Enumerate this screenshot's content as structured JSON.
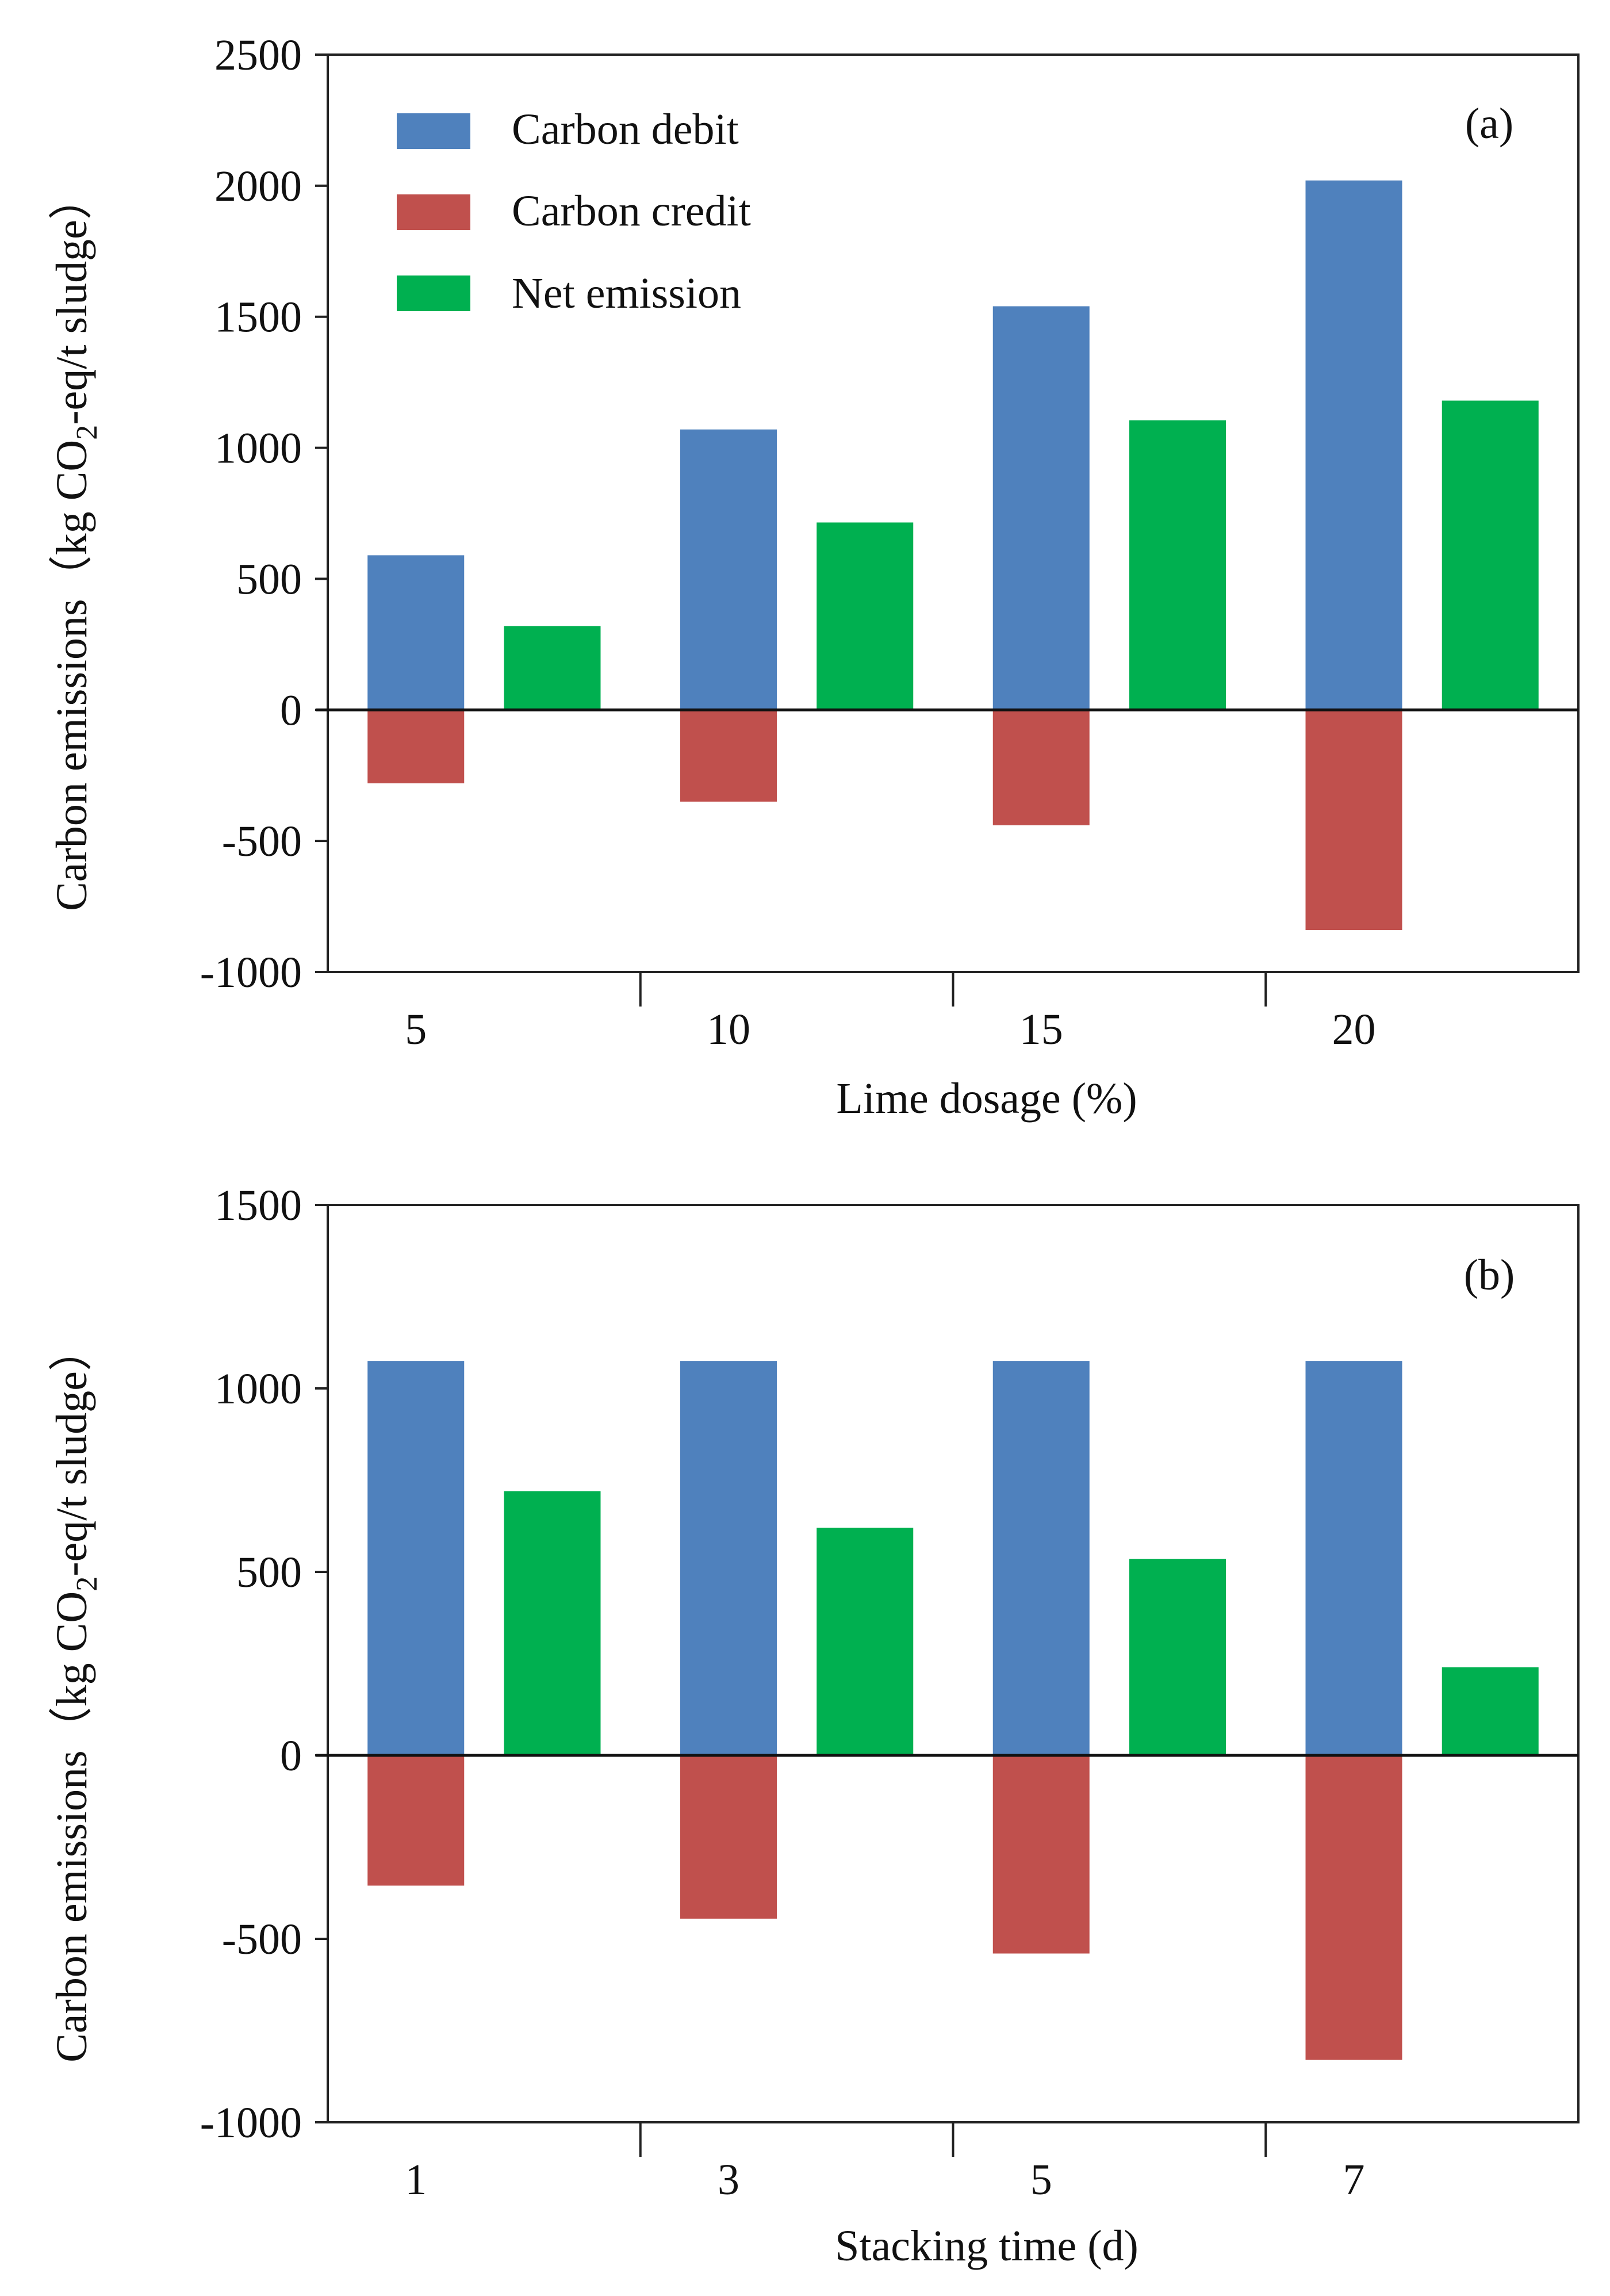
{
  "chart_data": [
    {
      "type": "bar",
      "panel_label": "(a)",
      "xlabel": "Lime dosage (%)",
      "ylabel": "Carbon emissions（kg CO",
      "ylabel_sub": "2",
      "ylabel_tail": "-eq/t sludge）",
      "categories": [
        "5",
        "10",
        "15",
        "20"
      ],
      "ylim": [
        -1000,
        2500
      ],
      "yticks": [
        "-1000",
        "-500",
        "0",
        "500",
        "1000",
        "1500",
        "2000",
        "2500"
      ],
      "ytick_values": [
        -1000,
        -500,
        0,
        500,
        1000,
        1500,
        2000,
        2500
      ],
      "grid": false,
      "legend_position": "top-left",
      "series": [
        {
          "name": "Carbon debit",
          "color": "#4f81bd",
          "values": [
            590,
            1070,
            1540,
            2020
          ]
        },
        {
          "name": "Carbon credit",
          "color": "#c0504d",
          "values": [
            -280,
            -350,
            -440,
            -840
          ]
        },
        {
          "name": "Net emission",
          "color": "#00b050",
          "values": [
            320,
            715,
            1105,
            1180
          ]
        }
      ]
    },
    {
      "type": "bar",
      "panel_label": "(b)",
      "xlabel": "Stacking time (d)",
      "ylabel": "Carbon emissions（kg CO",
      "ylabel_sub": "2",
      "ylabel_tail": "-eq/t sludge）",
      "categories": [
        "1",
        "3",
        "5",
        "7"
      ],
      "ylim": [
        -1000,
        1500
      ],
      "yticks": [
        "-1000",
        "-500",
        "0",
        "500",
        "1000",
        "1500"
      ],
      "ytick_values": [
        -1000,
        -500,
        0,
        500,
        1000,
        1500
      ],
      "grid": false,
      "legend_position": "none",
      "series": [
        {
          "name": "Carbon debit",
          "color": "#4f81bd",
          "values": [
            1075,
            1075,
            1075,
            1075
          ]
        },
        {
          "name": "Carbon credit",
          "color": "#c0504d",
          "values": [
            -355,
            -445,
            -540,
            -830
          ]
        },
        {
          "name": "Net emission",
          "color": "#00b050",
          "values": [
            720,
            620,
            535,
            240
          ]
        }
      ]
    }
  ]
}
